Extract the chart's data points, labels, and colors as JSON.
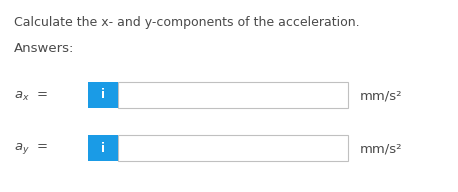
{
  "title": "Calculate the x- and y-components of the acceleration.",
  "answers_label": "Answers:",
  "rows": [
    {
      "label_main": "a",
      "label_sub": "x",
      "unit": "mm/s²"
    },
    {
      "label_main": "a",
      "label_sub": "y",
      "unit": "mm/s²"
    }
  ],
  "background_color": "#ffffff",
  "text_color": "#4a4a4a",
  "blue_btn_color": "#1a9be6",
  "input_box_color": "#ffffff",
  "input_box_border": "#c0c0c0",
  "title_fontsize": 9.0,
  "label_fontsize": 9.5,
  "unit_fontsize": 9.5,
  "answers_fontsize": 9.5,
  "icon_text": "i",
  "icon_text_color": "#ffffff",
  "icon_fontsize": 8.5,
  "fig_width": 4.58,
  "fig_height": 1.92,
  "dpi": 100
}
